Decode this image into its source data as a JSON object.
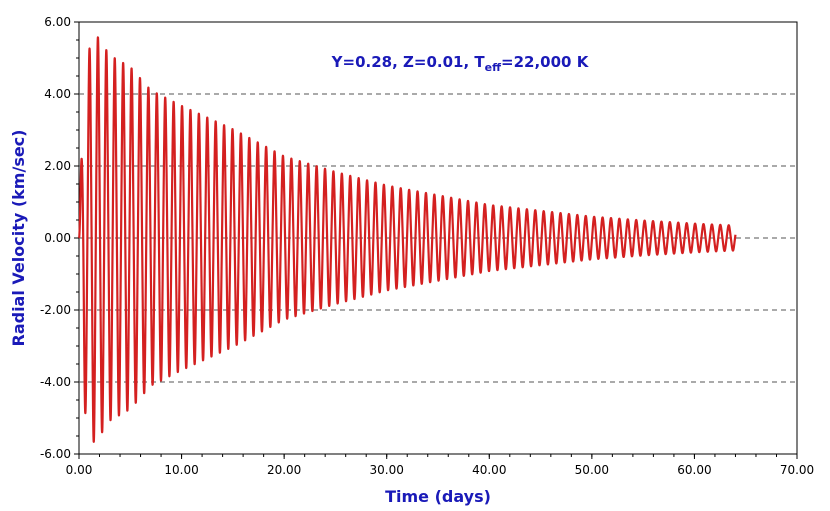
{
  "chart_data": {
    "type": "line",
    "xlabel": "Time (days)",
    "ylabel": "Radial Velocity (km/sec)",
    "xlim": [
      0,
      70
    ],
    "ylim": [
      -6,
      6
    ],
    "x_ticks": [
      "0.00",
      "10.00",
      "20.00",
      "30.00",
      "40.00",
      "50.00",
      "60.00",
      "70.00"
    ],
    "y_ticks": [
      "-6.00",
      "-4.00",
      "-2.00",
      "0.00",
      "2.00",
      "4.00",
      "6.00"
    ],
    "grid": "horizontal dashed",
    "annotation": {
      "prefix": "Y=0.28, Z=0.01, T",
      "subscript": "eff",
      "suffix": "=22,000 K"
    },
    "series": [
      {
        "color": "#d42020",
        "x_range": [
          0,
          64
        ],
        "oscillation_period_days": 0.82,
        "envelope": [
          {
            "x": 0.5,
            "y": 4.4
          },
          {
            "x": 1.5,
            "y": 5.3
          },
          {
            "x": 3,
            "y": 4.7
          },
          {
            "x": 5,
            "y": 4.4
          },
          {
            "x": 7,
            "y": 3.8
          },
          {
            "x": 10,
            "y": 3.4
          },
          {
            "x": 15,
            "y": 2.8
          },
          {
            "x": 20,
            "y": 2.1
          },
          {
            "x": 25,
            "y": 1.7
          },
          {
            "x": 30,
            "y": 1.35
          },
          {
            "x": 35,
            "y": 1.1
          },
          {
            "x": 40,
            "y": 0.85
          },
          {
            "x": 45,
            "y": 0.7
          },
          {
            "x": 50,
            "y": 0.55
          },
          {
            "x": 55,
            "y": 0.45
          },
          {
            "x": 60,
            "y": 0.37
          },
          {
            "x": 64,
            "y": 0.32
          }
        ]
      }
    ]
  }
}
